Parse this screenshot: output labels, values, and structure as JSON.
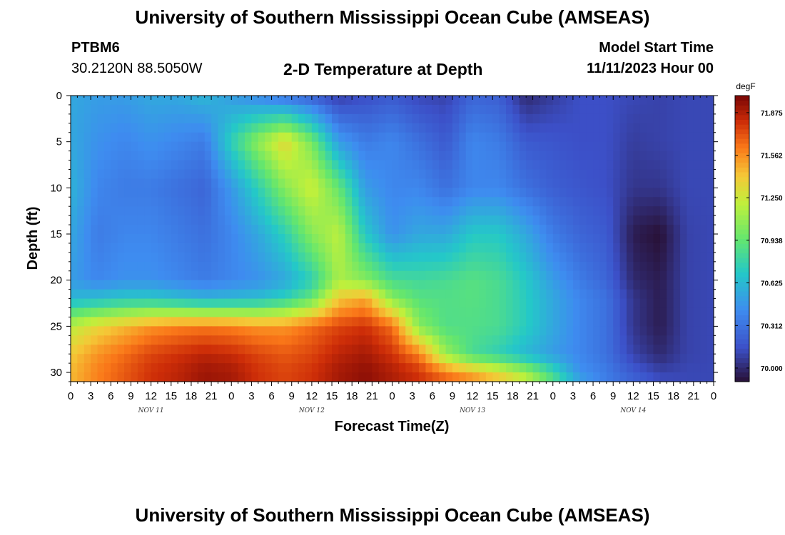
{
  "header": {
    "title": "University of Southern Mississippi Ocean Cube (AMSEAS)",
    "station_id": "PTBM6",
    "station_coords": "30.2120N  88.5050W",
    "plot_title": "2-D Temperature at Depth",
    "model_start_label": "Model Start Time",
    "model_start_value": "11/11/2023 Hour 00"
  },
  "footer": {
    "title": "University of Southern Mississippi Ocean Cube (AMSEAS)"
  },
  "chart_data": {
    "type": "heatmap",
    "title": "2-D Temperature at Depth",
    "xlabel": "Forecast Time(Z)",
    "ylabel": "Depth (ft)",
    "x_tick_labels": [
      "0",
      "3",
      "6",
      "9",
      "12",
      "15",
      "18",
      "21",
      "0",
      "3",
      "6",
      "9",
      "12",
      "15",
      "18",
      "21",
      "0",
      "3",
      "6",
      "9",
      "12",
      "15",
      "18",
      "21",
      "0",
      "3",
      "6",
      "9",
      "12",
      "15",
      "18",
      "21",
      "0"
    ],
    "day_labels": [
      {
        "label": "NOV 11",
        "hour": 12
      },
      {
        "label": "NOV 12",
        "hour": 36
      },
      {
        "label": "NOV 13",
        "hour": 60
      },
      {
        "label": "NOV 14",
        "hour": 84
      }
    ],
    "xlim": [
      0,
      96
    ],
    "y_ticks": [
      0,
      5,
      10,
      15,
      20,
      25,
      30
    ],
    "ylim": [
      0,
      31
    ],
    "y_inverted": true,
    "colorbar": {
      "unit": "degF",
      "range": [
        69.9,
        72.0
      ],
      "ticks": [
        70.0,
        70.312,
        70.625,
        70.938,
        71.25,
        71.562,
        71.875
      ],
      "tick_labels": [
        "70.000",
        "70.312",
        "70.625",
        "70.938",
        "71.250",
        "71.562",
        "71.875"
      ]
    },
    "grid_hours": [
      0,
      4,
      8,
      12,
      16,
      20,
      24,
      28,
      32,
      36,
      40,
      44,
      48,
      52,
      56,
      60,
      64,
      68,
      72,
      76,
      80,
      84,
      88,
      92,
      96
    ],
    "grid_depths": [
      0,
      5,
      10,
      15,
      20,
      22,
      25,
      28,
      30,
      31
    ],
    "values": [
      [
        70.55,
        70.5,
        70.5,
        70.55,
        70.55,
        70.62,
        70.5,
        70.4,
        70.3,
        70.22,
        70.08,
        70.15,
        70.2,
        70.12,
        70.1,
        70.25,
        70.22,
        70.0,
        70.08,
        70.15,
        70.15,
        70.12,
        70.1,
        70.12,
        70.12
      ],
      [
        70.55,
        70.45,
        70.4,
        70.45,
        70.4,
        70.35,
        70.75,
        71.08,
        71.35,
        71.0,
        70.5,
        70.35,
        70.4,
        70.3,
        70.2,
        70.4,
        70.35,
        70.2,
        70.18,
        70.15,
        70.15,
        70.08,
        70.1,
        70.12,
        70.12
      ],
      [
        70.6,
        70.4,
        70.35,
        70.35,
        70.3,
        70.25,
        70.48,
        70.75,
        71.05,
        71.25,
        70.95,
        70.5,
        70.4,
        70.4,
        70.3,
        70.4,
        70.4,
        70.3,
        70.22,
        70.18,
        70.15,
        70.05,
        70.05,
        70.12,
        70.12
      ],
      [
        70.55,
        70.35,
        70.4,
        70.4,
        70.35,
        70.3,
        70.4,
        70.55,
        70.75,
        71.05,
        71.2,
        70.7,
        70.45,
        70.55,
        70.55,
        70.7,
        70.7,
        70.55,
        70.35,
        70.25,
        70.2,
        69.95,
        69.9,
        70.1,
        70.12
      ],
      [
        70.5,
        70.4,
        70.45,
        70.45,
        70.4,
        70.35,
        70.4,
        70.45,
        70.55,
        70.75,
        71.15,
        71.05,
        70.85,
        70.82,
        70.85,
        70.9,
        70.85,
        70.7,
        70.5,
        70.35,
        70.25,
        70.0,
        69.95,
        70.1,
        70.12
      ],
      [
        70.62,
        70.65,
        70.7,
        70.7,
        70.65,
        70.6,
        70.62,
        70.65,
        70.75,
        70.95,
        71.4,
        71.5,
        71.05,
        70.9,
        70.88,
        70.9,
        70.85,
        70.72,
        70.55,
        70.4,
        70.3,
        70.05,
        69.95,
        70.1,
        70.12
      ],
      [
        71.2,
        71.35,
        71.45,
        71.55,
        71.6,
        71.62,
        71.6,
        71.55,
        71.55,
        71.65,
        71.75,
        71.8,
        71.65,
        71.05,
        70.88,
        70.88,
        70.85,
        70.72,
        70.55,
        70.4,
        70.3,
        70.05,
        69.95,
        70.1,
        70.12
      ],
      [
        71.4,
        71.55,
        71.65,
        71.75,
        71.8,
        71.85,
        71.82,
        71.75,
        71.7,
        71.75,
        71.85,
        71.9,
        71.8,
        71.6,
        71.1,
        70.85,
        70.75,
        70.62,
        70.5,
        70.4,
        70.3,
        70.1,
        70.0,
        70.1,
        70.12
      ],
      [
        71.45,
        71.6,
        71.7,
        71.8,
        71.85,
        71.92,
        71.9,
        71.8,
        71.75,
        71.8,
        71.9,
        71.95,
        71.88,
        71.8,
        71.6,
        71.45,
        71.3,
        71.1,
        70.8,
        70.45,
        70.35,
        70.2,
        70.1,
        70.12,
        70.12
      ],
      [
        71.45,
        71.6,
        71.7,
        71.8,
        71.85,
        71.92,
        71.9,
        71.8,
        71.75,
        71.8,
        71.9,
        71.95,
        71.88,
        71.8,
        71.7,
        71.6,
        71.45,
        71.25,
        70.9,
        70.55,
        70.35,
        70.25,
        70.15,
        70.12,
        70.12
      ]
    ]
  }
}
